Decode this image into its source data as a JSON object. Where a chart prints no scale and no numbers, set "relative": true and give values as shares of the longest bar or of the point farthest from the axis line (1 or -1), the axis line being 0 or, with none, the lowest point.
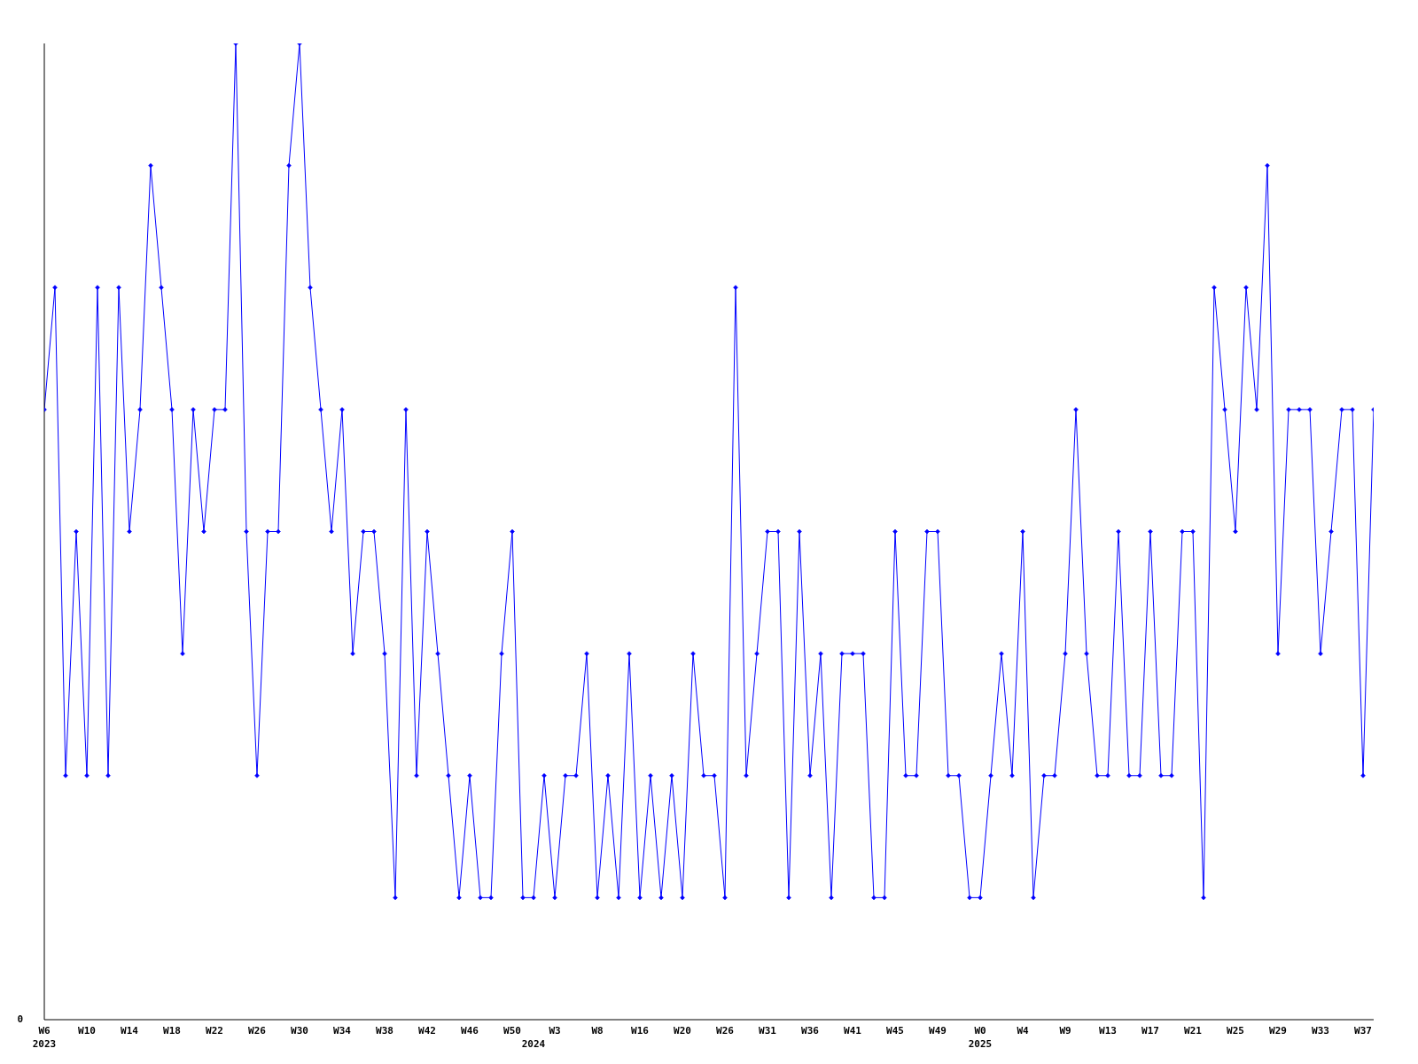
{
  "chart_data": {
    "type": "line",
    "relative": true,
    "categories": [
      "W6\n2023",
      null,
      null,
      null,
      "W10",
      null,
      null,
      null,
      "W14",
      null,
      null,
      null,
      "W18",
      null,
      null,
      null,
      "W22",
      null,
      null,
      null,
      "W26",
      null,
      null,
      null,
      "W30",
      null,
      null,
      null,
      "W34",
      null,
      null,
      null,
      "W38",
      null,
      null,
      null,
      "W42",
      null,
      null,
      null,
      "W46",
      null,
      null,
      null,
      "W50",
      null,
      "\n2024",
      null,
      "W3",
      null,
      null,
      null,
      "W8",
      null,
      null,
      null,
      "W16",
      null,
      null,
      null,
      "W20",
      null,
      null,
      null,
      "W26",
      null,
      null,
      null,
      "W31",
      null,
      null,
      null,
      "W36",
      null,
      null,
      null,
      "W41",
      null,
      null,
      null,
      "W45",
      null,
      null,
      null,
      "W49",
      null,
      null,
      null,
      "W0\n2025",
      null,
      null,
      null,
      "W4",
      null,
      null,
      null,
      "W9",
      null,
      null,
      null,
      "W13",
      null,
      null,
      null,
      "W17",
      null,
      null,
      null,
      "W21",
      null,
      null,
      null,
      "W25",
      null,
      null,
      null,
      "W29",
      null,
      null,
      null,
      "W33",
      null,
      null,
      null,
      "W37",
      null
    ],
    "series": [
      {
        "color": "#0000ff",
        "values": [
          0.625,
          0.75,
          0.25,
          0.5,
          0.25,
          0.75,
          0.25,
          0.75,
          0.5,
          0.625,
          0.875,
          0.75,
          0.625,
          0.375,
          0.625,
          0.5,
          0.625,
          0.625,
          1,
          0.5,
          0.25,
          0.5,
          0.5,
          0.875,
          1,
          0.75,
          0.625,
          0.5,
          0.625,
          0.375,
          0.5,
          0.5,
          0.375,
          0.125,
          0.625,
          0.25,
          0.5,
          0.375,
          0.25,
          0.125,
          0.25,
          0.125,
          0.125,
          0.375,
          0.5,
          0.125,
          0.125,
          0.25,
          0.125,
          0.25,
          0.25,
          0.375,
          0.125,
          0.25,
          0.125,
          0.375,
          0.125,
          0.25,
          0.125,
          0.25,
          0.125,
          0.375,
          0.25,
          0.25,
          0.125,
          0.75,
          0.25,
          0.375,
          0.5,
          0.5,
          0.125,
          0.5,
          0.25,
          0.375,
          0.125,
          0.375,
          0.375,
          0.375,
          0.125,
          0.125,
          0.5,
          0.25,
          0.25,
          0.5,
          0.5,
          0.25,
          0.25,
          0.125,
          0.125,
          0.25,
          0.375,
          0.25,
          0.5,
          0.125,
          0.25,
          0.25,
          0.375,
          0.625,
          0.375,
          0.25,
          0.25,
          0.5,
          0.25,
          0.25,
          0.5,
          0.25,
          0.25,
          0.5,
          0.5,
          0.125,
          0.75,
          0.625,
          0.5,
          0.75,
          0.625,
          0.875,
          0.375,
          0.625,
          0.625,
          0.625,
          0.375,
          0.5,
          0.625,
          0.625,
          0.25,
          0.625
        ]
      }
    ],
    "marker": "diamond",
    "line_style": "solid",
    "annotations": [
      "0"
    ]
  }
}
